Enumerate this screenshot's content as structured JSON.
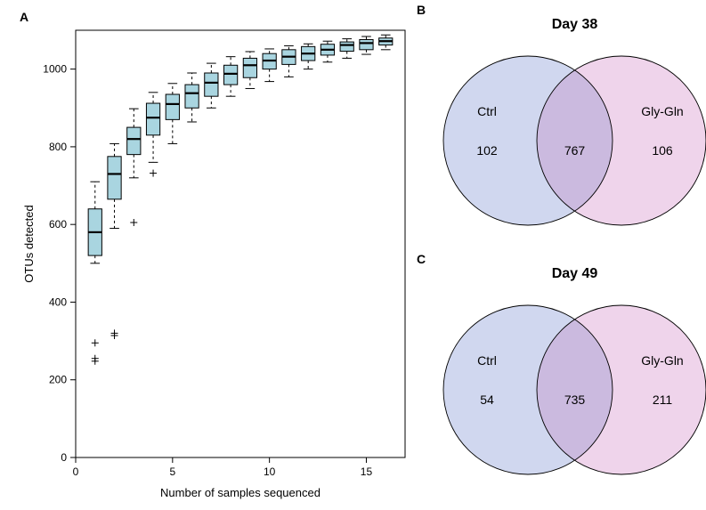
{
  "panelA": {
    "type": "boxplot",
    "label": "A",
    "label_fontsize": 14,
    "label_weight": "bold",
    "xlabel": "Number of samples sequenced",
    "ylabel": "OTUs detected",
    "axis_label_fontsize": 13,
    "tick_fontsize": 12,
    "xlim": [
      0,
      17
    ],
    "ylim": [
      0,
      1100
    ],
    "xticks": [
      0,
      5,
      10,
      15
    ],
    "yticks": [
      0,
      200,
      400,
      600,
      800,
      1000
    ],
    "box_fill": "#a9d5e0",
    "box_stroke": "#000000",
    "median_stroke": "#000000",
    "whisker_stroke": "#000000",
    "outlier_stroke": "#000000",
    "background": "#ffffff",
    "box_width": 0.7,
    "boxes": [
      {
        "x": 1,
        "q1": 520,
        "med": 580,
        "q3": 640,
        "lo": 500,
        "hi": 710,
        "out": [
          295,
          255,
          248
        ]
      },
      {
        "x": 2,
        "q1": 665,
        "med": 730,
        "q3": 775,
        "lo": 590,
        "hi": 808,
        "out": [
          314,
          320
        ]
      },
      {
        "x": 3,
        "q1": 780,
        "med": 820,
        "q3": 850,
        "lo": 720,
        "hi": 898,
        "out": [
          605
        ]
      },
      {
        "x": 4,
        "q1": 830,
        "med": 875,
        "q3": 912,
        "lo": 760,
        "hi": 940,
        "out": [
          732
        ]
      },
      {
        "x": 5,
        "q1": 870,
        "med": 910,
        "q3": 935,
        "lo": 808,
        "hi": 963,
        "out": []
      },
      {
        "x": 6,
        "q1": 900,
        "med": 938,
        "q3": 960,
        "lo": 864,
        "hi": 990,
        "out": []
      },
      {
        "x": 7,
        "q1": 930,
        "med": 965,
        "q3": 990,
        "lo": 900,
        "hi": 1015,
        "out": []
      },
      {
        "x": 8,
        "q1": 960,
        "med": 988,
        "q3": 1010,
        "lo": 930,
        "hi": 1032,
        "out": []
      },
      {
        "x": 9,
        "q1": 978,
        "med": 1010,
        "q3": 1028,
        "lo": 950,
        "hi": 1045,
        "out": []
      },
      {
        "x": 10,
        "q1": 1000,
        "med": 1022,
        "q3": 1040,
        "lo": 968,
        "hi": 1052,
        "out": []
      },
      {
        "x": 11,
        "q1": 1012,
        "med": 1032,
        "q3": 1050,
        "lo": 980,
        "hi": 1060,
        "out": []
      },
      {
        "x": 12,
        "q1": 1022,
        "med": 1040,
        "q3": 1058,
        "lo": 1000,
        "hi": 1065,
        "out": []
      },
      {
        "x": 13,
        "q1": 1036,
        "med": 1050,
        "q3": 1064,
        "lo": 1018,
        "hi": 1072,
        "out": []
      },
      {
        "x": 14,
        "q1": 1046,
        "med": 1062,
        "q3": 1070,
        "lo": 1028,
        "hi": 1078,
        "out": []
      },
      {
        "x": 15,
        "q1": 1050,
        "med": 1067,
        "q3": 1076,
        "lo": 1038,
        "hi": 1084,
        "out": []
      },
      {
        "x": 16,
        "q1": 1062,
        "med": 1072,
        "q3": 1080,
        "lo": 1050,
        "hi": 1088,
        "out": []
      }
    ]
  },
  "panelB": {
    "type": "venn2",
    "label": "B",
    "title": "Day 38",
    "title_fontsize": 16,
    "title_weight": "bold",
    "left_label": "Ctrl",
    "right_label": "Gly-Gln",
    "left_only": "102",
    "overlap": "767",
    "right_only": "106",
    "left_fill": "#c3cceb",
    "right_fill": "#ebc8e6",
    "overlap_fill": "#c9b8de",
    "circle_opacity": 0.78,
    "stroke": "#000000",
    "stroke_width": 0.9,
    "text_fontsize": 14,
    "value_fontsize": 14
  },
  "panelC": {
    "type": "venn2",
    "label": "C",
    "title": "Day 49",
    "title_fontsize": 16,
    "title_weight": "bold",
    "left_label": "Ctrl",
    "right_label": "Gly-Gln",
    "left_only": "54",
    "overlap": "735",
    "right_only": "211",
    "left_fill": "#c3cceb",
    "right_fill": "#ebc8e6",
    "overlap_fill": "#c9b8de",
    "circle_opacity": 0.78,
    "stroke": "#000000",
    "stroke_width": 0.9,
    "text_fontsize": 14,
    "value_fontsize": 14
  }
}
